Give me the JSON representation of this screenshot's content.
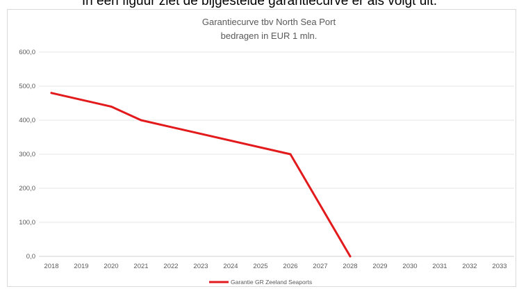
{
  "page": {
    "top_text": "In een figuur ziet de bijgestelde garantiecurve er als volgt uit."
  },
  "chart_data": {
    "type": "line",
    "title": "Garantiecurve tbv North Sea Port",
    "subtitle": "bedragen in EUR 1 mln.",
    "xlabel": "",
    "ylabel": "",
    "categories": [
      "2018",
      "2019",
      "2020",
      "2021",
      "2022",
      "2023",
      "2024",
      "2025",
      "2026",
      "2027",
      "2028",
      "2029",
      "2030",
      "2031",
      "2032",
      "2033"
    ],
    "series": [
      {
        "name": "Garantie GR Zeeland Seaports",
        "color": "#e31a1c",
        "points": [
          {
            "category": "2018",
            "value": 480
          },
          {
            "category": "2020",
            "value": 440
          },
          {
            "category": "2021",
            "value": 400
          },
          {
            "category": "2026",
            "value": 300
          },
          {
            "category": "2028",
            "value": 0
          }
        ]
      }
    ],
    "ylim": [
      0,
      600
    ],
    "yticks": [
      "0,0",
      "100,0",
      "200,0",
      "300,0",
      "400,0",
      "500,0",
      "600,0"
    ],
    "grid": true,
    "legend_position": "bottom"
  }
}
